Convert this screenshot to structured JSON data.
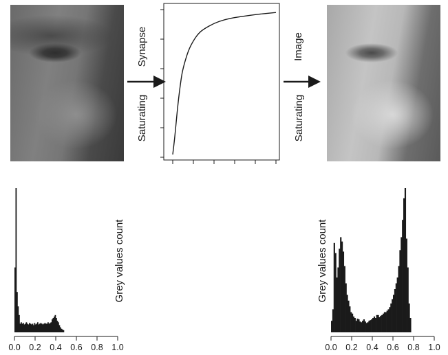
{
  "labels": {
    "arrow_left_bottom": "Saturating",
    "arrow_left_top": "Synapse",
    "arrow_right_bottom": "Saturating",
    "arrow_right_top": "Image",
    "hist_left_ylabel": "Grey values count",
    "hist_right_ylabel": "Grey values count"
  },
  "chart_data": [
    {
      "type": "line",
      "title": "",
      "xlabel": "",
      "ylabel": "",
      "xlim": [
        0,
        1
      ],
      "ylim": [
        0,
        1
      ],
      "x": [
        0,
        0.02,
        0.05,
        0.08,
        0.1,
        0.15,
        0.2,
        0.25,
        0.3,
        0.4,
        0.5,
        0.6,
        0.7,
        0.8,
        0.9,
        1.0
      ],
      "values": [
        0.0,
        0.12,
        0.35,
        0.52,
        0.6,
        0.72,
        0.79,
        0.84,
        0.87,
        0.91,
        0.935,
        0.95,
        0.96,
        0.97,
        0.978,
        0.985
      ]
    },
    {
      "type": "bar",
      "title": "",
      "xlabel": "",
      "ylabel": "Grey values count",
      "xlim": [
        0,
        1
      ],
      "xticks": [
        "0.0",
        "0.2",
        "0.4",
        "0.6",
        "0.8",
        "1.0"
      ],
      "bin_width": 0.01,
      "bin_start": 0.0,
      "values": [
        0.45,
        1.0,
        0.28,
        0.18,
        0.12,
        0.06,
        0.07,
        0.06,
        0.065,
        0.055,
        0.06,
        0.07,
        0.06,
        0.055,
        0.065,
        0.06,
        0.055,
        0.06,
        0.05,
        0.065,
        0.055,
        0.06,
        0.07,
        0.055,
        0.06,
        0.065,
        0.06,
        0.055,
        0.06,
        0.065,
        0.06,
        0.06,
        0.07,
        0.06,
        0.065,
        0.07,
        0.09,
        0.1,
        0.11,
        0.12,
        0.1,
        0.08,
        0.07,
        0.05,
        0.035,
        0.025,
        0.02,
        0.015
      ]
    },
    {
      "type": "bar",
      "title": "",
      "xlabel": "",
      "ylabel": "Grey values count",
      "xlim": [
        0,
        1
      ],
      "xticks": [
        "0.0",
        "0.2",
        "0.4",
        "0.6",
        "0.8",
        "1.0"
      ],
      "bin_width": 0.0125,
      "bin_start": 0.0,
      "values": [
        0.08,
        0.16,
        0.62,
        0.55,
        0.38,
        0.45,
        0.58,
        0.66,
        0.63,
        0.56,
        0.46,
        0.34,
        0.26,
        0.22,
        0.18,
        0.14,
        0.13,
        0.11,
        0.1,
        0.08,
        0.095,
        0.09,
        0.075,
        0.07,
        0.08,
        0.09,
        0.075,
        0.065,
        0.07,
        0.08,
        0.085,
        0.09,
        0.1,
        0.11,
        0.1,
        0.12,
        0.12,
        0.105,
        0.115,
        0.12,
        0.13,
        0.14,
        0.14,
        0.15,
        0.16,
        0.175,
        0.2,
        0.23,
        0.26,
        0.3,
        0.34,
        0.38,
        0.46,
        0.57,
        0.66,
        0.78,
        0.93,
        1.0,
        0.65,
        0.45,
        0.2,
        0.1
      ]
    }
  ]
}
